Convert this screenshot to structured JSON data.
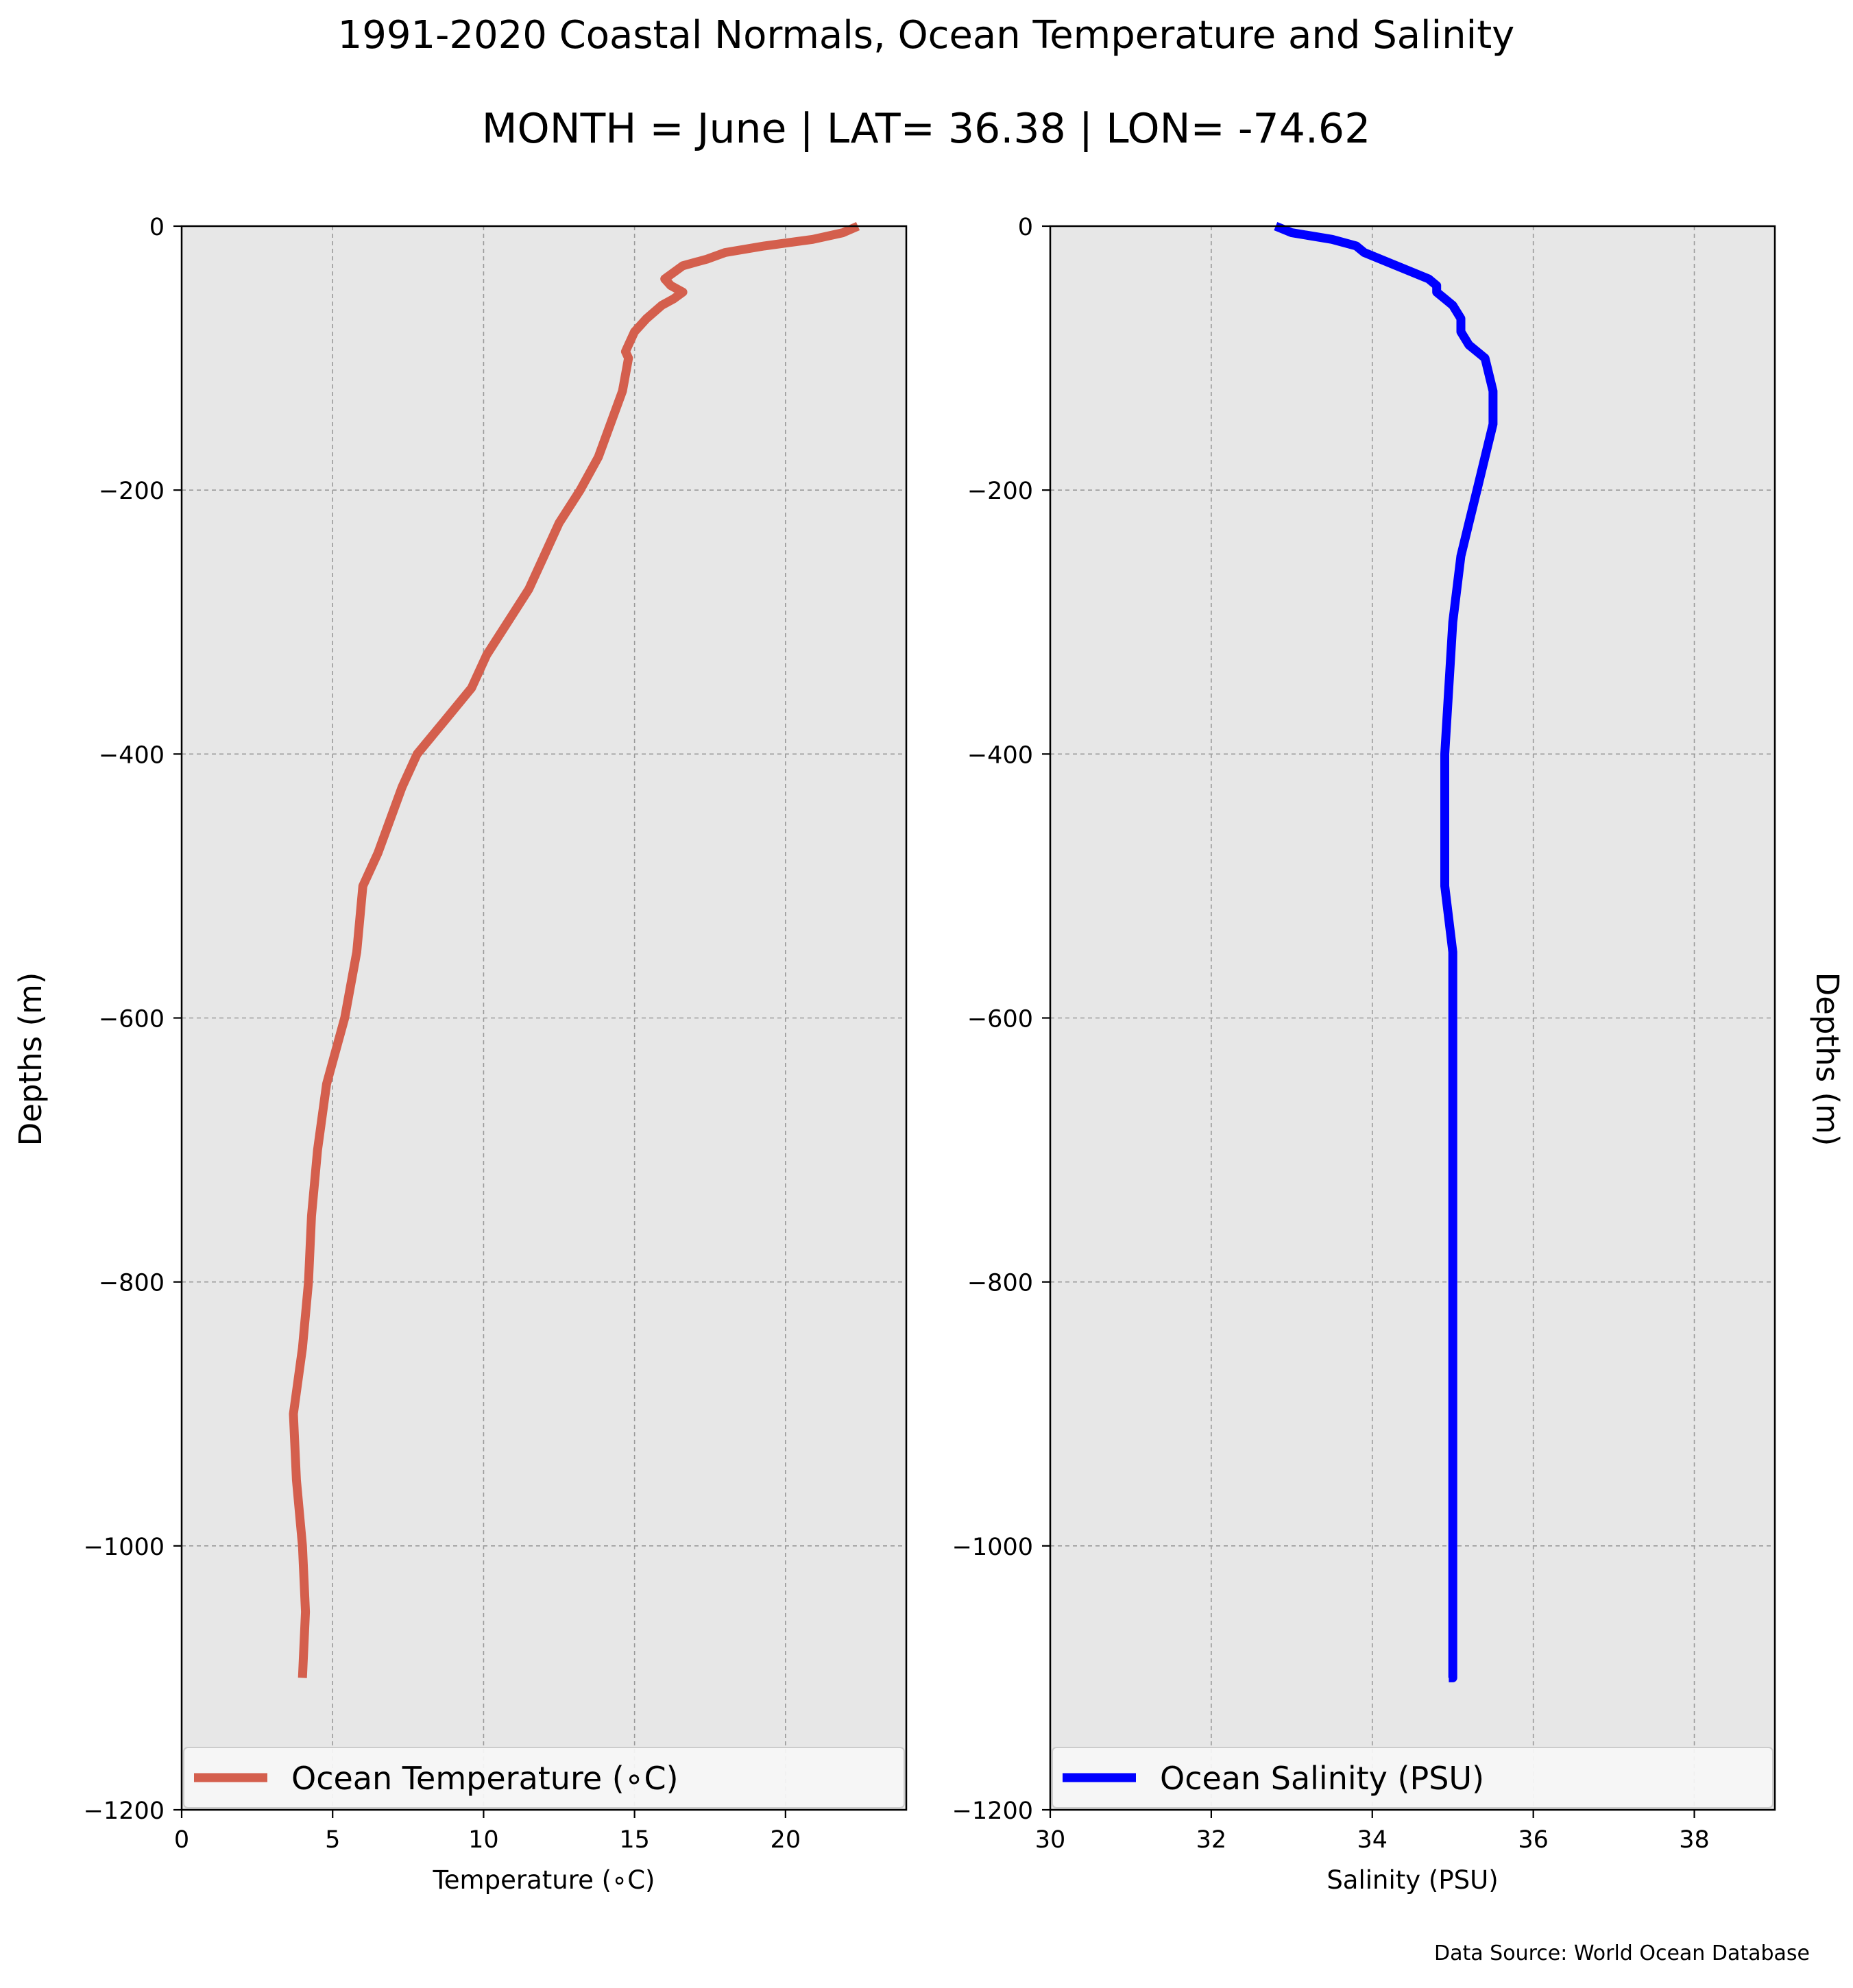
{
  "figure": {
    "title": "1991-2020 Coastal Normals, Ocean Temperature and Salinity",
    "subtitle": "MONTH = June | LAT= 36.38 | LON= -74.62",
    "source_note": "Data Source: World Ocean Database"
  },
  "chart_data": [
    {
      "type": "line",
      "xlabel": "Temperature ($^\\circ$C)",
      "xlabel_display": "Temperature (∘C)",
      "ylabel": "Depths (m)",
      "xlim": [
        0,
        24
      ],
      "ylim": [
        -1200,
        0
      ],
      "x_ticks": [
        0,
        5,
        10,
        15,
        20
      ],
      "y_ticks": [
        0,
        -200,
        -400,
        -600,
        -800,
        -1000,
        -1200
      ],
      "grid": true,
      "legend": "bottom",
      "series": [
        {
          "name": "Ocean Temperature (∘C)",
          "color": "#d45f4d",
          "x": [
            22.4,
            21.9,
            20.9,
            19.3,
            18.0,
            17.4,
            16.6,
            16.0,
            16.2,
            16.6,
            16.3,
            15.9,
            15.4,
            15.0,
            14.8,
            14.7,
            14.8,
            14.6,
            14.2,
            13.8,
            13.2,
            12.5,
            12.0,
            11.5,
            10.8,
            10.1,
            9.6,
            8.7,
            7.8,
            7.3,
            6.9,
            6.5,
            6.0,
            5.8,
            5.4,
            5.1,
            4.8,
            4.5,
            4.3,
            4.2,
            4.0,
            3.7,
            3.8,
            4.0,
            4.1,
            4.0,
            4.0
          ],
          "y": [
            0,
            -5,
            -10,
            -15,
            -20,
            -25,
            -30,
            -40,
            -45,
            -50,
            -55,
            -60,
            -70,
            -80,
            -90,
            -95,
            -100,
            -125,
            -150,
            -175,
            -200,
            -225,
            -250,
            -275,
            -300,
            -325,
            -350,
            -375,
            -400,
            -425,
            -450,
            -475,
            -500,
            -550,
            -600,
            -625,
            -650,
            -700,
            -750,
            -800,
            -850,
            -900,
            -950,
            -1000,
            -1050,
            -1100,
            -1100
          ]
        }
      ]
    },
    {
      "type": "line",
      "xlabel": "Salinity (PSU)",
      "ylabel": "Depths (m)",
      "xlim": [
        30,
        39
      ],
      "ylim": [
        -1200,
        0
      ],
      "x_ticks": [
        30,
        32,
        34,
        36,
        38
      ],
      "y_ticks": [
        0,
        -200,
        -400,
        -600,
        -800,
        -1000,
        -1200
      ],
      "grid": true,
      "legend": "bottom",
      "series": [
        {
          "name": "Ocean Salinity (PSU)",
          "color": "#0000ff",
          "x": [
            32.8,
            33.0,
            33.5,
            33.8,
            33.9,
            34.1,
            34.3,
            34.5,
            34.7,
            34.8,
            34.8,
            34.9,
            35.0,
            35.1,
            35.1,
            35.2,
            35.4,
            35.5,
            35.5,
            35.4,
            35.3,
            35.2,
            35.1,
            35.0,
            34.9,
            34.9,
            35.0,
            35.0,
            35.0,
            35.0,
            35.0,
            35.0,
            35.0,
            35.0,
            34.95
          ],
          "y": [
            0,
            -5,
            -10,
            -15,
            -20,
            -25,
            -30,
            -35,
            -40,
            -45,
            -50,
            -55,
            -60,
            -70,
            -80,
            -90,
            -100,
            -125,
            -150,
            -175,
            -200,
            -225,
            -250,
            -300,
            -400,
            -500,
            -550,
            -600,
            -700,
            -800,
            -900,
            -1000,
            -1050,
            -1100,
            -1100
          ]
        }
      ]
    }
  ]
}
